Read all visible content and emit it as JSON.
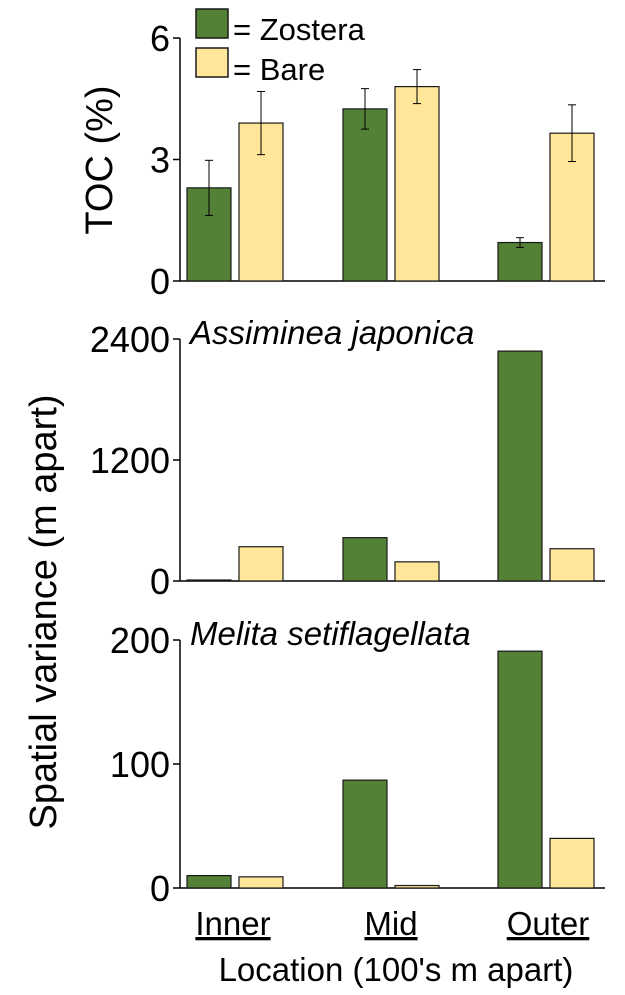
{
  "colors": {
    "zostera": "#538135",
    "bare": "#FFE699",
    "edge": "#1a1a1a"
  },
  "legend": {
    "zostera_label": "= Zostera",
    "bare_label": "= Bare",
    "placement": "top-left"
  },
  "shared": {
    "ylabel": "Spatial variance  (m apart)",
    "xlabel": "Location (100's m apart)",
    "categories": [
      "Inner",
      "Mid",
      "Outer"
    ]
  },
  "chart_data": [
    {
      "type": "bar",
      "title": "",
      "ylabel": "TOC (%)",
      "categories": [
        "Inner",
        "Mid",
        "Outer"
      ],
      "ylim": [
        0,
        6
      ],
      "yticks": [
        0,
        3,
        6
      ],
      "series": [
        {
          "name": "Zostera",
          "values": [
            2.3,
            4.25,
            0.95
          ],
          "errors": [
            0.68,
            0.5,
            0.12
          ]
        },
        {
          "name": "Bare",
          "values": [
            3.9,
            4.8,
            3.65
          ],
          "errors": [
            0.78,
            0.42,
            0.7
          ]
        }
      ]
    },
    {
      "type": "bar",
      "title": "Assiminea japonica",
      "categories": [
        "Inner",
        "Mid",
        "Outer"
      ],
      "ylim": [
        0,
        2400
      ],
      "yticks": [
        0,
        1200,
        2400
      ],
      "series": [
        {
          "name": "Zostera",
          "values": [
            10,
            430,
            2280
          ]
        },
        {
          "name": "Bare",
          "values": [
            340,
            190,
            320
          ]
        }
      ]
    },
    {
      "type": "bar",
      "title": "Melita setiflagellata",
      "categories": [
        "Inner",
        "Mid",
        "Outer"
      ],
      "ylim": [
        0,
        200
      ],
      "yticks": [
        0,
        100,
        200
      ],
      "series": [
        {
          "name": "Zostera",
          "values": [
            10,
            87,
            191
          ]
        },
        {
          "name": "Bare",
          "values": [
            9,
            2,
            40
          ]
        }
      ]
    }
  ]
}
